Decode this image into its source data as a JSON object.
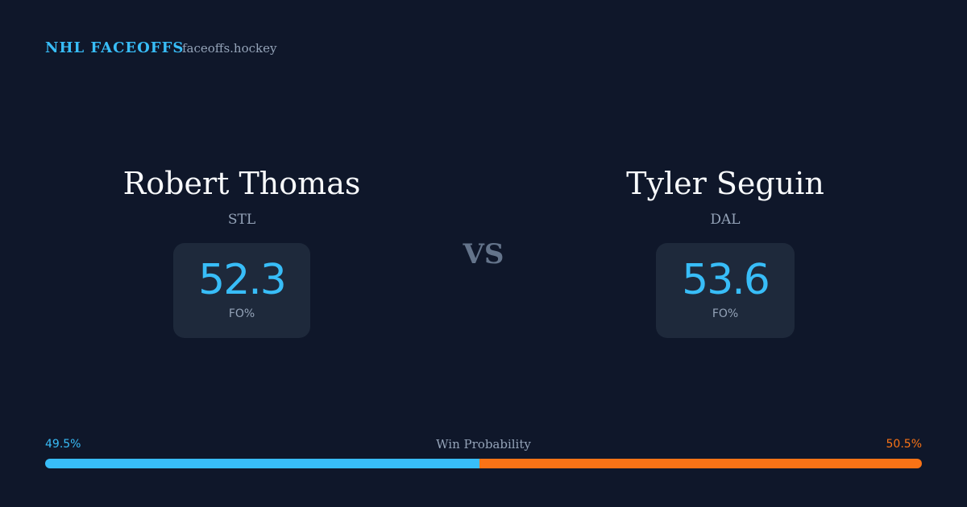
{
  "header": {
    "brand": "NHL FACEOFFS",
    "site": "faceoffs.hockey"
  },
  "players": [
    {
      "name": "Robert Thomas",
      "team": "STL",
      "fo_pct": 52.3,
      "stat_label": "FO%"
    },
    {
      "name": "Tyler Seguin",
      "team": "DAL",
      "fo_pct": 53.6,
      "stat_label": "FO%"
    }
  ],
  "versus": "VS",
  "win_probability": {
    "label": "Win Probability",
    "values": [
      49.5,
      50.5
    ],
    "value_labels": [
      "49.5%",
      "50.5%"
    ],
    "colors": [
      "#38bdf8",
      "#f97316"
    ]
  }
}
